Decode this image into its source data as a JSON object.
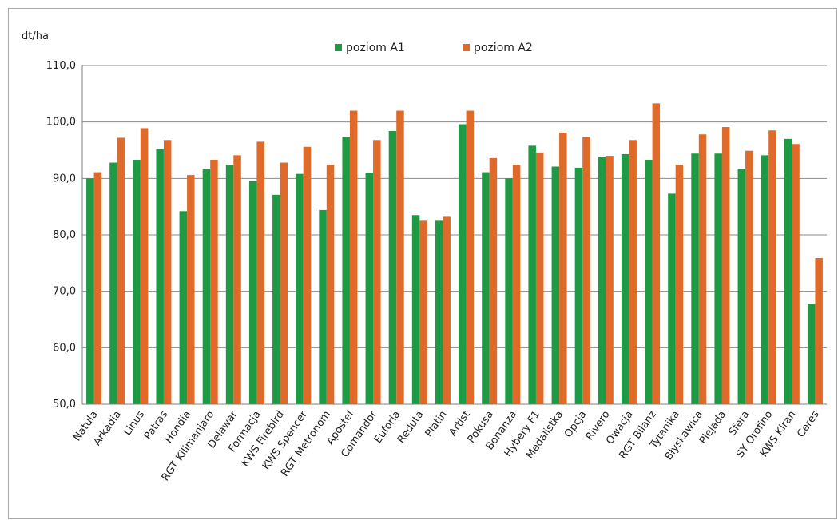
{
  "chart_data": {
    "type": "bar",
    "ylabel": "dt/ha",
    "ylim": [
      50,
      110
    ],
    "ytick_step": 10,
    "ytick_labels": [
      "50,0",
      "60,0",
      "70,0",
      "80,0",
      "90,0",
      "100,0",
      "110,0"
    ],
    "grid": true,
    "legend_position": "top-center",
    "categories": [
      "Natula",
      "Arkadia",
      "Linus",
      "Patras",
      "Hondia",
      "RGT Kilimanjaro",
      "Delawar",
      "Formacja",
      "KWS Firebird",
      "KWS Spencer",
      "RGT Metronom",
      "Apostel",
      "Comandor",
      "Euforia",
      "Reduta",
      "Platin",
      "Artist",
      "Pokusa",
      "Bonanza",
      "Hybery F1",
      "Medalistka",
      "Opcja",
      "Rivero",
      "Owacja",
      "RGT Bilanz",
      "Tytanika",
      "Błyskawica",
      "Plejada",
      "Sfera",
      "SY Orofino",
      "KWS Kiran",
      "Ceres"
    ],
    "series": [
      {
        "name": "poziom A1",
        "color": "#1e9a45",
        "values": [
          90.0,
          92.8,
          93.3,
          95.2,
          84.2,
          91.7,
          92.4,
          89.5,
          87.1,
          90.8,
          84.4,
          97.4,
          91.0,
          98.4,
          83.5,
          82.5,
          99.6,
          91.1,
          90.0,
          95.8,
          92.1,
          91.9,
          93.8,
          94.3,
          93.3,
          87.3,
          94.4,
          94.4,
          91.7,
          94.1,
          97.0,
          67.8
        ]
      },
      {
        "name": "poziom A2",
        "color": "#e06a2a",
        "values": [
          91.1,
          97.2,
          98.9,
          96.8,
          90.6,
          93.3,
          94.1,
          96.5,
          92.8,
          95.6,
          92.4,
          102.0,
          96.8,
          102.0,
          82.5,
          83.2,
          102.0,
          93.6,
          92.4,
          94.6,
          98.1,
          97.4,
          94.0,
          96.8,
          103.3,
          92.4,
          97.8,
          99.1,
          94.9,
          98.5,
          96.1,
          75.9
        ]
      }
    ]
  }
}
